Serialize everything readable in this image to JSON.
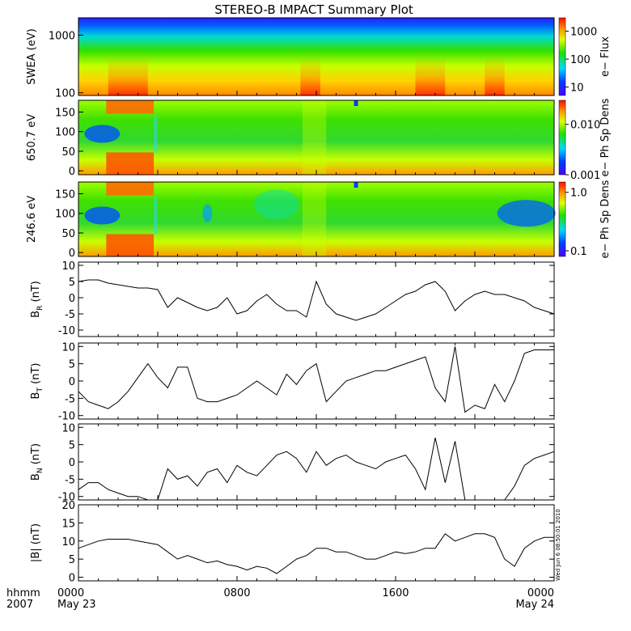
{
  "title": "STEREO-B IMPACT Summary Plot",
  "stamp": "Wed Jun 6 08:50:01 2010",
  "time_axis": {
    "row1_label": "hhmm",
    "row2_label": "2007",
    "ticks": [
      {
        "hour": 0,
        "label": "0000",
        "sub": "May 23"
      },
      {
        "hour": 8,
        "label": "0800",
        "sub": ""
      },
      {
        "hour": 16,
        "label": "1600",
        "sub": ""
      },
      {
        "hour": 24,
        "label": "0000",
        "sub": "May 24"
      }
    ]
  },
  "chart_data": [
    {
      "type": "heatmap",
      "ylabel": "SWEA (eV)",
      "y_scale": "log",
      "yticks": [
        {
          "value": 100,
          "label": "100"
        },
        {
          "value": 1000,
          "label": "1000"
        }
      ],
      "ylim": [
        90,
        2000
      ],
      "colorbar": {
        "label": "e− Flux",
        "scale": "log",
        "ticks": [
          {
            "value": 10,
            "label": "10"
          },
          {
            "value": 100,
            "label": "100"
          },
          {
            "value": 1000,
            "label": "1000"
          }
        ],
        "range": [
          5,
          3000
        ]
      },
      "x_range_hours": [
        0,
        24
      ],
      "enhanced_intervals_hours": [
        [
          1.5,
          3.5
        ],
        [
          11.2,
          12.2
        ],
        [
          17.0,
          18.5
        ],
        [
          20.5,
          21.5
        ]
      ]
    },
    {
      "type": "heatmap",
      "ylabel": "650.7 eV",
      "yticks": [
        {
          "value": 0,
          "label": "0"
        },
        {
          "value": 50,
          "label": "50"
        },
        {
          "value": 100,
          "label": "100"
        },
        {
          "value": 150,
          "label": "150"
        }
      ],
      "ylim": [
        -10,
        180
      ],
      "colorbar": {
        "label": "e− Ph Sp Dens",
        "scale": "log",
        "ticks": [
          {
            "value": 0.001,
            "label": "0.001"
          },
          {
            "value": 0.01,
            "label": "0.010"
          }
        ],
        "range": [
          0.001,
          0.03
        ]
      }
    },
    {
      "type": "heatmap",
      "ylabel": "246.6 eV",
      "yticks": [
        {
          "value": 0,
          "label": "0"
        },
        {
          "value": 50,
          "label": "50"
        },
        {
          "value": 100,
          "label": "100"
        },
        {
          "value": 150,
          "label": "150"
        }
      ],
      "ylim": [
        -10,
        180
      ],
      "colorbar": {
        "label": "e− Ph Sp Dens",
        "scale": "log",
        "ticks": [
          {
            "value": 0.1,
            "label": "0.1"
          },
          {
            "value": 1.0,
            "label": "1.0"
          }
        ],
        "range": [
          0.08,
          1.5
        ]
      }
    },
    {
      "type": "line",
      "ylabel": "B_R (nT)",
      "ylabel_main": "B",
      "ylabel_sub": "R",
      "ylabel_unit": "(nT)",
      "ylim": [
        -12,
        11
      ],
      "yticks": [
        -10,
        -5,
        0,
        5,
        10
      ],
      "x_hours": [
        0,
        0.5,
        1,
        1.5,
        2,
        2.5,
        3,
        3.5,
        4,
        4.5,
        5,
        5.5,
        6,
        6.5,
        7,
        7.5,
        8,
        8.5,
        9,
        9.5,
        10,
        10.5,
        11,
        11.5,
        12,
        12.5,
        13,
        13.5,
        14,
        14.5,
        15,
        15.5,
        16,
        16.5,
        17,
        17.5,
        18,
        18.5,
        19,
        19.5,
        20,
        20.5,
        21,
        21.5,
        22,
        22.5,
        23,
        23.5,
        24
      ],
      "y": [
        5,
        5.5,
        5.5,
        4.5,
        4,
        3.5,
        3,
        3,
        2.5,
        -3,
        0,
        -1.5,
        -3,
        -4,
        -3,
        0,
        -5,
        -4,
        -1,
        1,
        -2,
        -4,
        -4,
        -6,
        5,
        -2,
        -5,
        -6,
        -7,
        -6,
        -5,
        -3,
        -1,
        1,
        2,
        4,
        5,
        2,
        -4,
        -1,
        1,
        2,
        1,
        1,
        0,
        -1,
        -3,
        -4,
        -5
      ]
    },
    {
      "type": "line",
      "ylabel": "B_T (nT)",
      "ylabel_main": "B",
      "ylabel_sub": "T",
      "ylabel_unit": "(nT)",
      "ylim": [
        -11,
        11
      ],
      "yticks": [
        -10,
        -5,
        0,
        5,
        10
      ],
      "x_hours": [
        0,
        0.5,
        1,
        1.5,
        2,
        2.5,
        3,
        3.5,
        4,
        4.5,
        5,
        5.5,
        6,
        6.5,
        7,
        7.5,
        8,
        8.5,
        9,
        9.5,
        10,
        10.5,
        11,
        11.5,
        12,
        12.5,
        13,
        13.5,
        14,
        14.5,
        15,
        15.5,
        16,
        16.5,
        17,
        17.5,
        18,
        18.5,
        19,
        19.5,
        20,
        20.5,
        21,
        21.5,
        22,
        22.5,
        23,
        23.5,
        24
      ],
      "y": [
        -3,
        -6,
        -7,
        -8,
        -6,
        -3,
        1,
        5,
        1,
        -2,
        4,
        4,
        -5,
        -6,
        -6,
        -5,
        -4,
        -2,
        0,
        -2,
        -4,
        2,
        -1,
        3,
        5,
        -6,
        -3,
        0,
        1,
        2,
        3,
        3,
        4,
        5,
        6,
        7,
        -2,
        -6,
        10,
        -9,
        -7,
        -8,
        -1,
        -6,
        0,
        8,
        9,
        9,
        9
      ]
    },
    {
      "type": "line",
      "ylabel": "B_N (nT)",
      "ylabel_main": "B",
      "ylabel_sub": "N",
      "ylabel_unit": "(nT)",
      "ylim": [
        -11,
        11
      ],
      "yticks": [
        -10,
        -5,
        0,
        5,
        10
      ],
      "x_hours": [
        0,
        0.5,
        1,
        1.5,
        2,
        2.5,
        3,
        3.5,
        4,
        4.5,
        5,
        5.5,
        6,
        6.5,
        7,
        7.5,
        8,
        8.5,
        9,
        9.5,
        10,
        10.5,
        11,
        11.5,
        12,
        12.5,
        13,
        13.5,
        14,
        14.5,
        15,
        15.5,
        16,
        16.5,
        17,
        17.5,
        18,
        18.5,
        19,
        19.5,
        20,
        20.5,
        21,
        21.5,
        22,
        22.5,
        23,
        23.5,
        24
      ],
      "y": [
        -8,
        -6,
        -6,
        -8,
        -9,
        -10,
        -10,
        -11,
        -11,
        -2,
        -5,
        -4,
        -7,
        -3,
        -2,
        -6,
        -1,
        -3,
        -4,
        -1,
        2,
        3,
        1,
        -3,
        3,
        -1,
        1,
        2,
        0,
        -1,
        -2,
        0,
        1,
        2,
        -2,
        -8,
        7,
        -6,
        6,
        -11,
        -11,
        -11,
        -11,
        -11,
        -7,
        -1,
        1,
        2,
        3
      ]
    },
    {
      "type": "line",
      "ylabel": "|B| (nT)",
      "ylim": [
        -1,
        20
      ],
      "yticks": [
        0,
        5,
        10,
        15,
        20
      ],
      "x_hours": [
        0,
        0.5,
        1,
        1.5,
        2,
        2.5,
        3,
        3.5,
        4,
        4.5,
        5,
        5.5,
        6,
        6.5,
        7,
        7.5,
        8,
        8.5,
        9,
        9.5,
        10,
        10.5,
        11,
        11.5,
        12,
        12.5,
        13,
        13.5,
        14,
        14.5,
        15,
        15.5,
        16,
        16.5,
        17,
        17.5,
        18,
        18.5,
        19,
        19.5,
        20,
        20.5,
        21,
        21.5,
        22,
        22.5,
        23,
        23.5,
        24
      ],
      "y": [
        8,
        9,
        10,
        10.5,
        10.5,
        10.5,
        10,
        9.5,
        9,
        7,
        5,
        6,
        5,
        4,
        4.5,
        3.5,
        3,
        2,
        3,
        2.5,
        1,
        3,
        5,
        6,
        8,
        8,
        7,
        7,
        6,
        5,
        5,
        6,
        7,
        6.5,
        7,
        8,
        8,
        12,
        10,
        11,
        12,
        12,
        11,
        5,
        3,
        8,
        10,
        11,
        11
      ]
    }
  ]
}
